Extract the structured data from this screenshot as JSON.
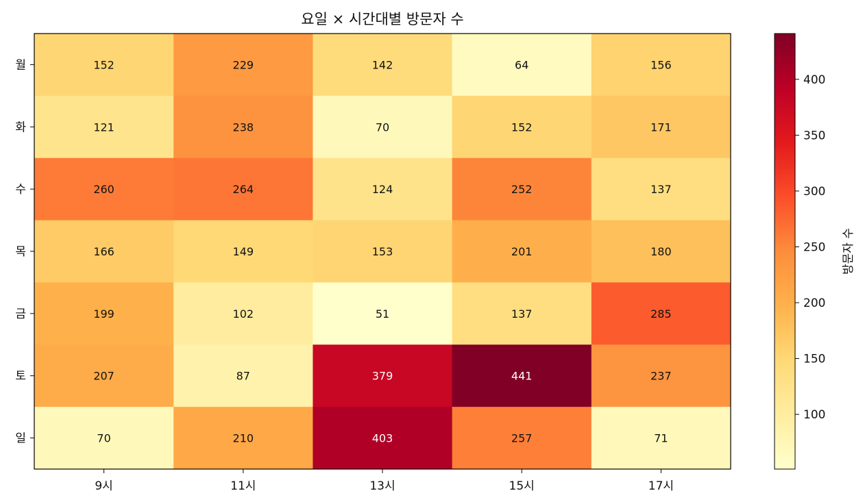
{
  "chart_data": {
    "type": "heatmap",
    "title": "요일 × 시간대별 방문자 수",
    "x_categories": [
      "9시",
      "11시",
      "13시",
      "15시",
      "17시"
    ],
    "y_categories": [
      "월",
      "화",
      "수",
      "목",
      "금",
      "토",
      "일"
    ],
    "values": [
      [
        152,
        229,
        142,
        64,
        156
      ],
      [
        121,
        238,
        70,
        152,
        171
      ],
      [
        260,
        264,
        124,
        252,
        137
      ],
      [
        166,
        149,
        153,
        201,
        180
      ],
      [
        199,
        102,
        51,
        137,
        285
      ],
      [
        207,
        87,
        379,
        441,
        237
      ],
      [
        70,
        210,
        403,
        257,
        71
      ]
    ],
    "colormap": "YlOrRd",
    "color_range": [
      51,
      441
    ],
    "colorbar": {
      "label": "방문자 수",
      "ticks": [
        100,
        150,
        200,
        250,
        300,
        350,
        400
      ]
    },
    "cell_labels_shown": true,
    "grid": false
  }
}
